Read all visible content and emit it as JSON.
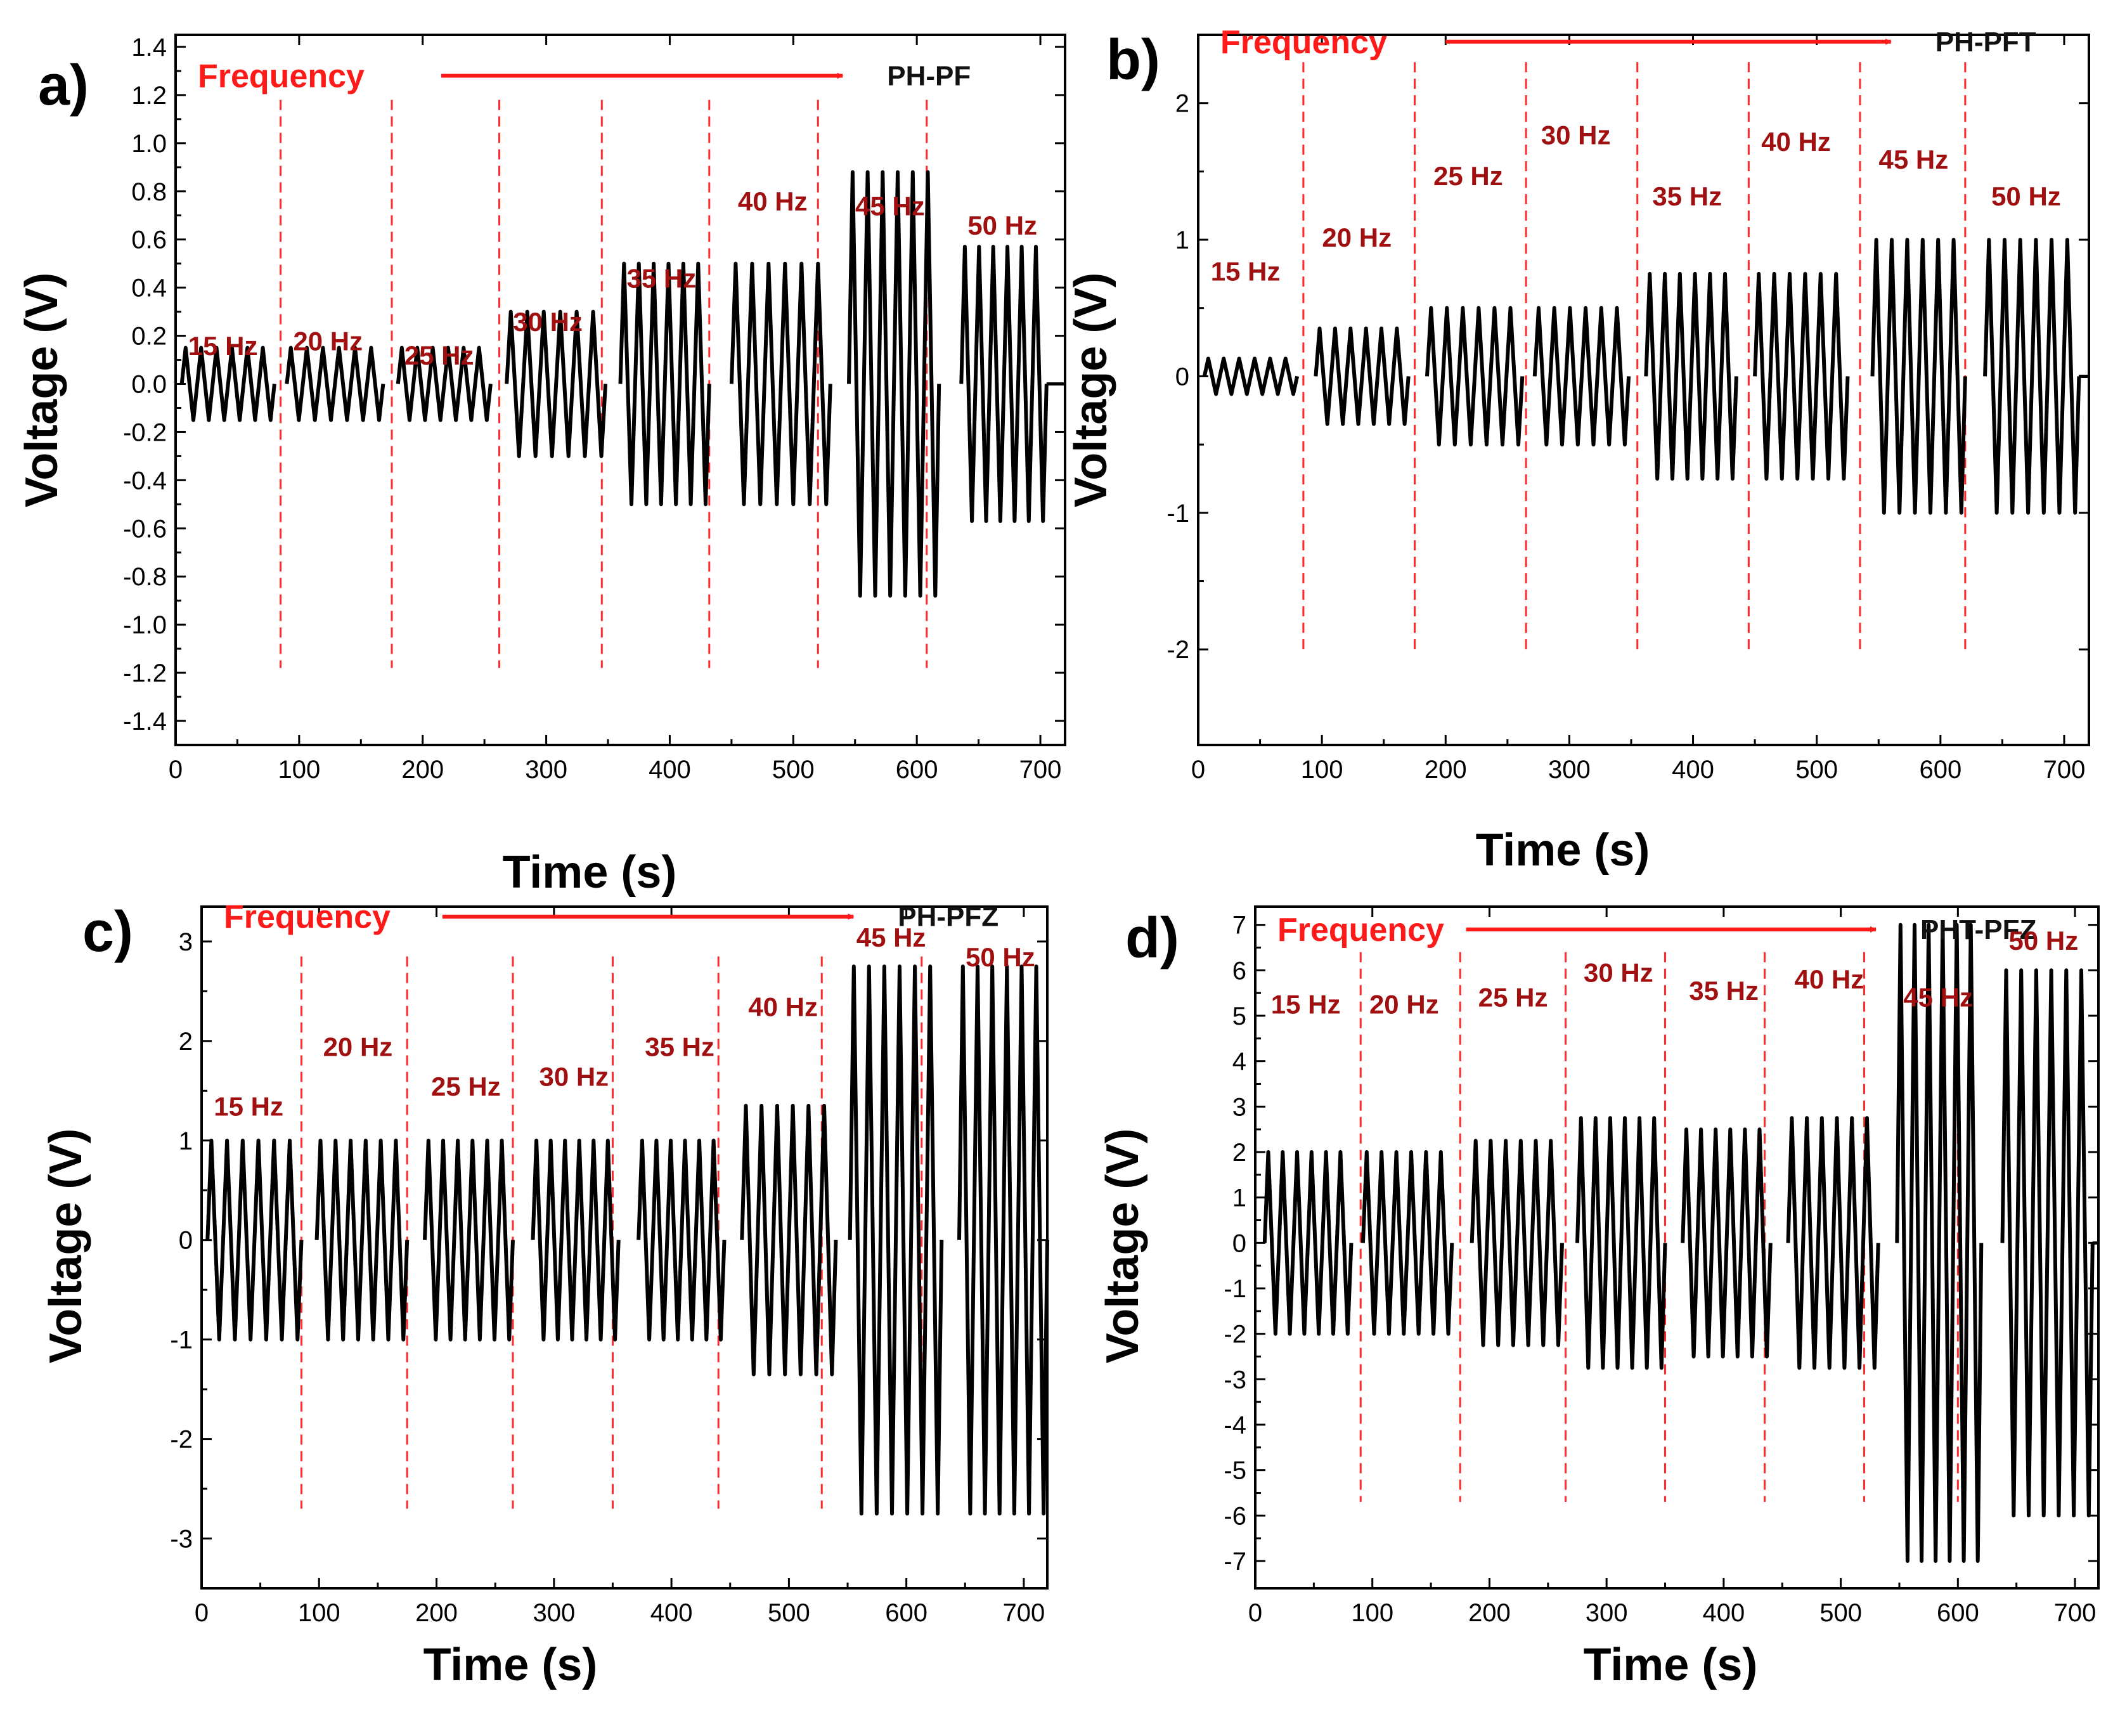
{
  "colors": {
    "frequency_red": "#ff1a1a",
    "hz_label": "#a01010",
    "dash_line": "#ff2b2b",
    "signal": "#000000"
  },
  "chart_data": [
    {
      "type": "line",
      "panel": "a)",
      "sample": "PH-PF",
      "frequency_label": "Frequency",
      "xlabel": "Time (s)",
      "ylabel": "Voltage (V)",
      "xlim": [
        0,
        720
      ],
      "ylim": [
        -1.5,
        1.45
      ],
      "xticks": [
        0,
        100,
        200,
        300,
        400,
        500,
        600,
        700
      ],
      "yticks": [
        "-1.4",
        "-1.2",
        "-1.0",
        "-0.8",
        "-0.6",
        "-0.4",
        "-0.2",
        "0.0",
        "0.2",
        "0.4",
        "0.6",
        "0.8",
        "1.0",
        "1.2",
        "1.4"
      ],
      "ytick_values": [
        -1.4,
        -1.2,
        -1.0,
        -0.8,
        -0.6,
        -0.4,
        -0.2,
        0.0,
        0.2,
        0.4,
        0.6,
        0.8,
        1.0,
        1.2,
        1.4
      ],
      "arrow": {
        "x_start": 215,
        "x_end": 540,
        "y": 1.28
      },
      "segments": [
        {
          "label": "15 Hz",
          "start": 5,
          "end": 80,
          "amplitude": 0.15,
          "cycles": 6,
          "label_y": 0.12
        },
        {
          "label": "20 Hz",
          "start": 90,
          "end": 168,
          "amplitude": 0.15,
          "cycles": 6,
          "label_y": 0.14
        },
        {
          "label": "25 Hz",
          "start": 180,
          "end": 255,
          "amplitude": 0.15,
          "cycles": 6,
          "label_y": 0.08
        },
        {
          "label": "30 Hz",
          "start": 268,
          "end": 348,
          "amplitude": 0.3,
          "cycles": 6,
          "label_y": 0.22
        },
        {
          "label": "35 Hz",
          "start": 360,
          "end": 432,
          "amplitude": 0.5,
          "cycles": 6,
          "label_y": 0.4
        },
        {
          "label": "40 Hz",
          "start": 450,
          "end": 530,
          "amplitude": 0.5,
          "cycles": 6,
          "label_y": 0.72
        },
        {
          "label": "45 Hz",
          "start": 545,
          "end": 618,
          "amplitude": 0.88,
          "cycles": 6,
          "label_y": 0.7
        },
        {
          "label": "50 Hz",
          "start": 636,
          "end": 705,
          "amplitude": 0.57,
          "cycles": 6,
          "label_y": 0.62
        }
      ],
      "dashed_lines": [
        85,
        175,
        262,
        345,
        432,
        520,
        608
      ],
      "dashed_range": [
        -1.18,
        1.18
      ]
    },
    {
      "type": "line",
      "panel": "b)",
      "sample": "PH-PFT",
      "frequency_label": "Frequency",
      "xlabel": "Time (s)",
      "ylabel": "Voltage (V)",
      "xlim": [
        0,
        720
      ],
      "ylim": [
        -2.7,
        2.5
      ],
      "xticks": [
        0,
        100,
        200,
        300,
        400,
        500,
        600,
        700
      ],
      "yticks": [
        "-2",
        "-1",
        "0",
        "1",
        "2"
      ],
      "ytick_values": [
        -2,
        -1,
        0,
        1,
        2
      ],
      "arrow": {
        "x_start": 200,
        "x_end": 560,
        "y": 2.45
      },
      "segments": [
        {
          "label": "15 Hz",
          "start": 5,
          "end": 80,
          "amplitude": 0.13,
          "cycles": 6,
          "label_y": 0.7
        },
        {
          "label": "20 Hz",
          "start": 95,
          "end": 170,
          "amplitude": 0.35,
          "cycles": 6,
          "label_y": 0.95
        },
        {
          "label": "25 Hz",
          "start": 185,
          "end": 262,
          "amplitude": 0.5,
          "cycles": 6,
          "label_y": 1.4
        },
        {
          "label": "30 Hz",
          "start": 272,
          "end": 348,
          "amplitude": 0.5,
          "cycles": 6,
          "label_y": 1.7
        },
        {
          "label": "35 Hz",
          "start": 362,
          "end": 435,
          "amplitude": 0.75,
          "cycles": 6,
          "label_y": 1.25
        },
        {
          "label": "40 Hz",
          "start": 450,
          "end": 525,
          "amplitude": 0.75,
          "cycles": 6,
          "label_y": 1.65
        },
        {
          "label": "45 Hz",
          "start": 545,
          "end": 620,
          "amplitude": 1.0,
          "cycles": 6,
          "label_y": 1.52
        },
        {
          "label": "50 Hz",
          "start": 636,
          "end": 712,
          "amplitude": 1.0,
          "cycles": 6,
          "label_y": 1.25
        }
      ],
      "dashed_lines": [
        85,
        175,
        265,
        355,
        445,
        535,
        620
      ],
      "dashed_range": [
        -2.0,
        2.3
      ]
    },
    {
      "type": "line",
      "panel": "c)",
      "sample": "PH-PFZ",
      "frequency_label": "Frequency",
      "xlabel": "Time (s)",
      "ylabel": "Voltage (V)",
      "xlim": [
        0,
        720
      ],
      "ylim": [
        -3.5,
        3.35
      ],
      "xticks": [
        0,
        100,
        200,
        300,
        400,
        500,
        600,
        700
      ],
      "yticks": [
        "-3",
        "-2",
        "-1",
        "0",
        "1",
        "2",
        "3"
      ],
      "ytick_values": [
        -3,
        -2,
        -1,
        0,
        1,
        2,
        3
      ],
      "arrow": {
        "x_start": 205,
        "x_end": 555,
        "y": 3.25
      },
      "segments": [
        {
          "label": "15 Hz",
          "start": 5,
          "end": 85,
          "amplitude": 1.0,
          "cycles": 6,
          "label_y": 1.25
        },
        {
          "label": "20 Hz",
          "start": 98,
          "end": 175,
          "amplitude": 1.0,
          "cycles": 6,
          "label_y": 1.85
        },
        {
          "label": "25 Hz",
          "start": 190,
          "end": 265,
          "amplitude": 1.0,
          "cycles": 6,
          "label_y": 1.45
        },
        {
          "label": "30 Hz",
          "start": 282,
          "end": 355,
          "amplitude": 1.0,
          "cycles": 6,
          "label_y": 1.55
        },
        {
          "label": "35 Hz",
          "start": 372,
          "end": 445,
          "amplitude": 1.0,
          "cycles": 6,
          "label_y": 1.85
        },
        {
          "label": "40 Hz",
          "start": 460,
          "end": 540,
          "amplitude": 1.35,
          "cycles": 6,
          "label_y": 2.25
        },
        {
          "label": "45 Hz",
          "start": 552,
          "end": 630,
          "amplitude": 2.75,
          "cycles": 6,
          "label_y": 2.95
        },
        {
          "label": "50 Hz",
          "start": 645,
          "end": 720,
          "amplitude": 2.75,
          "cycles": 6,
          "label_y": 2.75
        }
      ],
      "dashed_lines": [
        85,
        175,
        265,
        350,
        440,
        528,
        613
      ],
      "dashed_range": [
        -2.7,
        2.85
      ]
    },
    {
      "type": "line",
      "panel": "d)",
      "sample": "PHT-PFZ",
      "frequency_label": "Frequency",
      "xlabel": "Time (s)",
      "ylabel": "Voltage (V)",
      "xlim": [
        0,
        720
      ],
      "ylim": [
        -7.6,
        7.4
      ],
      "xticks": [
        0,
        100,
        200,
        300,
        400,
        500,
        600,
        700
      ],
      "yticks": [
        "-7",
        "-6",
        "-5",
        "-4",
        "-3",
        "-2",
        "-1",
        "0",
        "1",
        "2",
        "3",
        "4",
        "5",
        "6",
        "7"
      ],
      "ytick_values": [
        -7,
        -6,
        -5,
        -4,
        -3,
        -2,
        -1,
        0,
        1,
        2,
        3,
        4,
        5,
        6,
        7
      ],
      "arrow": {
        "x_start": 180,
        "x_end": 530,
        "y": 6.9
      },
      "segments": [
        {
          "label": "15 Hz",
          "start": 8,
          "end": 82,
          "amplitude": 2.0,
          "cycles": 6,
          "label_y": 5.05
        },
        {
          "label": "20 Hz",
          "start": 92,
          "end": 168,
          "amplitude": 2.0,
          "cycles": 6,
          "label_y": 5.05
        },
        {
          "label": "25 Hz",
          "start": 185,
          "end": 262,
          "amplitude": 2.25,
          "cycles": 6,
          "label_y": 5.2
        },
        {
          "label": "30 Hz",
          "start": 275,
          "end": 350,
          "amplitude": 2.75,
          "cycles": 6,
          "label_y": 5.75
        },
        {
          "label": "35 Hz",
          "start": 365,
          "end": 440,
          "amplitude": 2.5,
          "cycles": 6,
          "label_y": 5.35
        },
        {
          "label": "40 Hz",
          "start": 455,
          "end": 532,
          "amplitude": 2.75,
          "cycles": 6,
          "label_y": 5.6
        },
        {
          "label": "45 Hz",
          "start": 548,
          "end": 620,
          "amplitude": 7.0,
          "cycles": 6,
          "label_y": 5.2
        },
        {
          "label": "50 Hz",
          "start": 638,
          "end": 715,
          "amplitude": 6.0,
          "cycles": 6,
          "label_y": 6.45
        }
      ],
      "dashed_lines": [
        90,
        175,
        265,
        350,
        435,
        520,
        600
      ],
      "dashed_range": [
        -5.7,
        6.4
      ]
    }
  ]
}
